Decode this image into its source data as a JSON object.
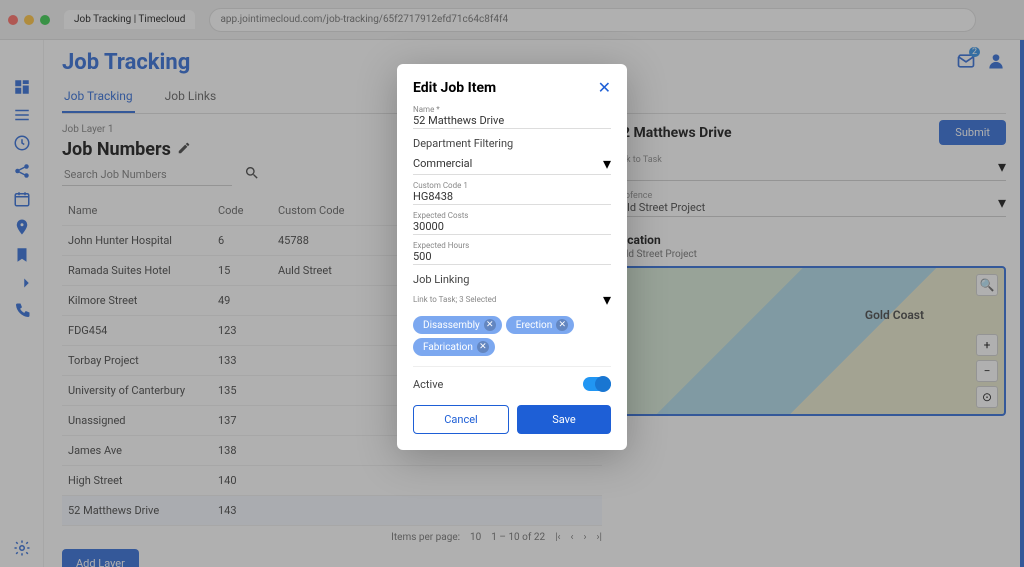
{
  "browser": {
    "tab_title": "Job Tracking | Timecloud",
    "url": "app.jointimecloud.com/job-tracking/65f2717912efd71c64c8f4f4"
  },
  "colors": {
    "primary": "#1e5fd6",
    "chip": "#7ca8f0",
    "toggle": "#2196f3"
  },
  "page": {
    "title": "Job Tracking",
    "tabs": [
      {
        "label": "Job Tracking",
        "active": true
      },
      {
        "label": "Job Links",
        "active": false
      }
    ],
    "breadcrumb": "Job Layer 1",
    "section_title": "Job Numbers",
    "search_placeholder": "Search Job Numbers",
    "active_label": "Active",
    "table": {
      "columns": [
        "Name",
        "Code",
        "Custom Code"
      ],
      "rows": [
        {
          "name": "John Hunter Hospital",
          "code": "6",
          "custom": "45788"
        },
        {
          "name": "Ramada Suites Hotel",
          "code": "15",
          "custom": "Auld Street"
        },
        {
          "name": "Kilmore Street",
          "code": "49",
          "custom": ""
        },
        {
          "name": "FDG454",
          "code": "123",
          "custom": ""
        },
        {
          "name": "Torbay Project",
          "code": "133",
          "custom": ""
        },
        {
          "name": "University of Canterbury",
          "code": "135",
          "custom": ""
        },
        {
          "name": "Unassigned",
          "code": "137",
          "custom": ""
        },
        {
          "name": "James Ave",
          "code": "138",
          "custom": ""
        },
        {
          "name": "High Street",
          "code": "140",
          "custom": ""
        },
        {
          "name": "52 Matthews Drive",
          "code": "143",
          "custom": ""
        }
      ]
    },
    "pagination": {
      "items_per_page_label": "Items per page:",
      "items_per_page": "10",
      "range": "1 – 10 of 22"
    },
    "add_layer_label": "Add Layer"
  },
  "right": {
    "title": "52 Matthews Drive",
    "submit_label": "Submit",
    "fields": {
      "link_to_task_label": "Link to Task",
      "geofence_label": "Geofence",
      "geofence_value": "Auld Street Project"
    },
    "map": {
      "title": "Location",
      "subtitle": "Auld Street Project",
      "city": "Gold Coast"
    }
  },
  "modal": {
    "title": "Edit Job Item",
    "name_label": "Name *",
    "name_value": "52 Matthews Drive",
    "dept_filter_label": "Department Filtering",
    "dept_value": "Commercial",
    "custom_code_label": "Custom Code 1",
    "custom_code_value": "HG8438",
    "expected_costs_label": "Expected Costs",
    "expected_costs_value": "30000",
    "expected_hours_label": "Expected Hours",
    "expected_hours_value": "500",
    "job_linking_label": "Job Linking",
    "link_task_label": "Link to Task; 3 Selected",
    "chips": [
      "Disassembly",
      "Erection",
      "Fabrication"
    ],
    "active_label": "Active",
    "cancel_label": "Cancel",
    "save_label": "Save"
  },
  "header_badge": "2"
}
